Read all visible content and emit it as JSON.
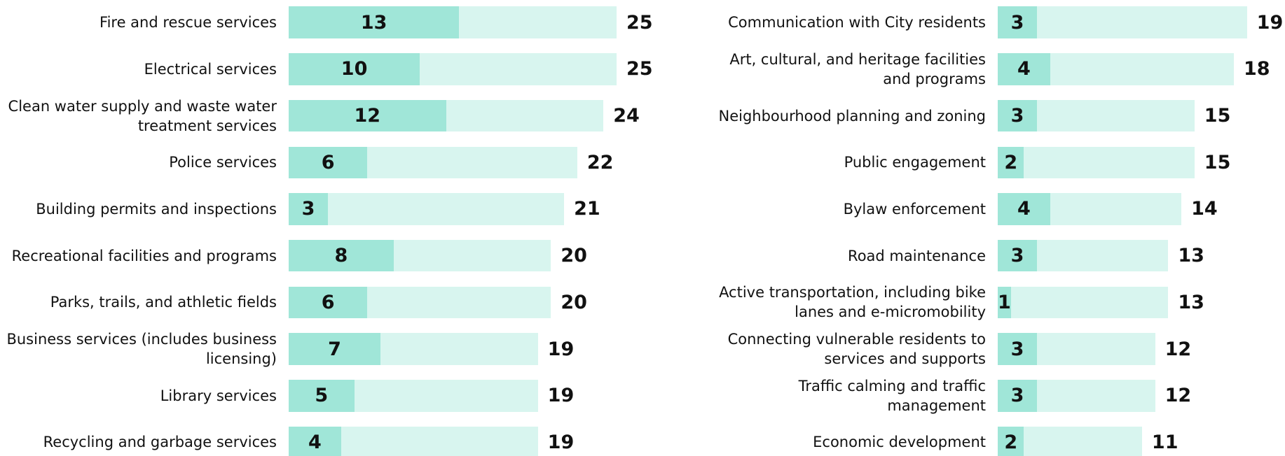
{
  "chart_data": [
    {
      "type": "bar",
      "categories": [
        "Fire and rescue services",
        "Electrical services",
        "Clean water supply and waste water\ntreatment services",
        "Police services",
        "Building permits and inspections",
        "Recreational facilities and programs",
        "Parks, trails, and athletic fields",
        "Business services (includes business\nlicensing)",
        "Library services",
        "Recycling and garbage services"
      ],
      "series": [
        {
          "color": "#d8f5ef",
          "values": [
            25,
            25,
            24,
            22,
            21,
            20,
            20,
            19,
            19,
            19
          ]
        },
        {
          "color": "#a0e6d8",
          "values": [
            13,
            10,
            12,
            6,
            3,
            8,
            6,
            7,
            5,
            4
          ]
        }
      ]
    },
    {
      "type": "bar",
      "categories": [
        "Communication with City residents",
        "Art, cultural, and heritage facilities\nand programs",
        "Neighbourhood planning and zoning",
        "Public engagement",
        "Bylaw enforcement",
        "Road maintenance",
        "Active transportation, including bike\nlanes and e-micromobility",
        "Connecting vulnerable residents to\nservices and supports",
        "Traffic calming and traffic\nmanagement",
        "Economic development"
      ],
      "series": [
        {
          "color": "#d8f5ef",
          "values": [
            19,
            18,
            15,
            15,
            14,
            13,
            13,
            12,
            12,
            11
          ]
        },
        {
          "color": "#a0e6d8",
          "values": [
            3,
            4,
            3,
            2,
            4,
            3,
            1,
            3,
            3,
            2
          ]
        }
      ]
    }
  ]
}
